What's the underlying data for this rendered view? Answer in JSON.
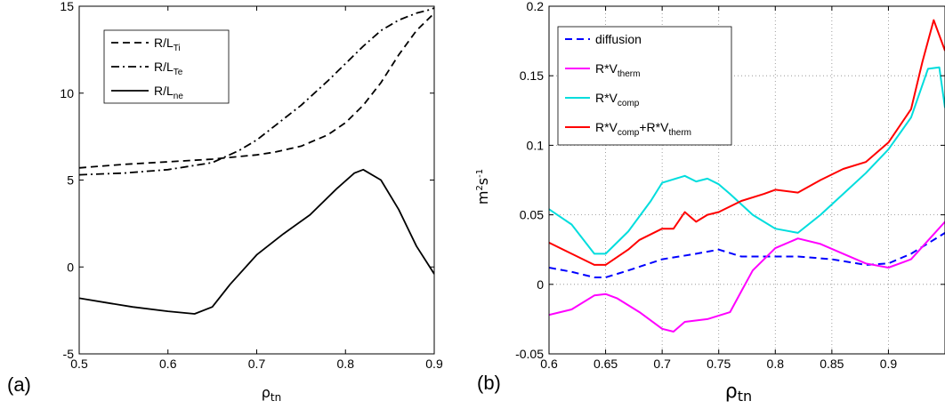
{
  "chart_data": [
    {
      "type": "line",
      "panel_label": "(a)",
      "xlabel": "ρ",
      "xlabel_sub": "tn",
      "ylabel": "",
      "xlim": [
        0.5,
        0.9
      ],
      "ylim": [
        -5,
        15
      ],
      "xticks": [
        "0.5",
        "0.6",
        "0.7",
        "0.8",
        "0.9"
      ],
      "yticks": [
        "-5",
        "0",
        "5",
        "10",
        "15"
      ],
      "grid": false,
      "legend_position": "top-left",
      "series": [
        {
          "name": "R/L",
          "name_sub": "Ti",
          "style": "dashed",
          "color": "#000000",
          "x": [
            0.5,
            0.55,
            0.6,
            0.65,
            0.68,
            0.7,
            0.72,
            0.75,
            0.78,
            0.8,
            0.82,
            0.84,
            0.86,
            0.88,
            0.9
          ],
          "y": [
            5.7,
            5.9,
            6.05,
            6.2,
            6.35,
            6.45,
            6.6,
            6.95,
            7.6,
            8.3,
            9.3,
            10.6,
            12.2,
            13.6,
            14.6
          ]
        },
        {
          "name": "R/L",
          "name_sub": "Te",
          "style": "dashdot",
          "color": "#000000",
          "x": [
            0.5,
            0.55,
            0.6,
            0.65,
            0.68,
            0.7,
            0.72,
            0.75,
            0.78,
            0.8,
            0.82,
            0.84,
            0.86,
            0.88,
            0.895,
            0.9
          ],
          "y": [
            5.3,
            5.4,
            5.6,
            6.0,
            6.7,
            7.3,
            8.1,
            9.3,
            10.7,
            11.7,
            12.7,
            13.6,
            14.2,
            14.6,
            14.8,
            14.9
          ]
        },
        {
          "name": "R/L",
          "name_sub": "ne",
          "style": "solid",
          "color": "#000000",
          "x": [
            0.5,
            0.53,
            0.56,
            0.6,
            0.63,
            0.65,
            0.67,
            0.7,
            0.73,
            0.76,
            0.79,
            0.81,
            0.82,
            0.84,
            0.86,
            0.88,
            0.9
          ],
          "y": [
            -1.8,
            -2.05,
            -2.3,
            -2.55,
            -2.7,
            -2.3,
            -1.0,
            0.7,
            1.9,
            3.0,
            4.5,
            5.4,
            5.6,
            5.0,
            3.3,
            1.2,
            -0.4
          ]
        }
      ]
    },
    {
      "type": "line",
      "panel_label": "(b)",
      "xlabel": "ρ",
      "xlabel_sub": "tn",
      "ylabel": "m",
      "ylabel_sup": "2",
      "ylabel_tail": "s",
      "ylabel_tail_sup": "-1",
      "xlim": [
        0.6,
        0.95
      ],
      "ylim": [
        -0.05,
        0.2
      ],
      "xticks": [
        "0.6",
        "0.65",
        "0.7",
        "0.75",
        "0.8",
        "0.85",
        "0.9"
      ],
      "yticks": [
        "-0.05",
        "0",
        "0.05",
        "0.1",
        "0.15",
        "0.2"
      ],
      "grid": true,
      "legend_position": "top-left",
      "series": [
        {
          "name": "diffusion",
          "style": "dashed",
          "color": "#0000ff",
          "x": [
            0.6,
            0.62,
            0.64,
            0.65,
            0.67,
            0.7,
            0.73,
            0.75,
            0.77,
            0.8,
            0.82,
            0.85,
            0.88,
            0.9,
            0.92,
            0.95
          ],
          "y": [
            0.012,
            0.009,
            0.005,
            0.005,
            0.01,
            0.018,
            0.022,
            0.025,
            0.02,
            0.02,
            0.02,
            0.018,
            0.014,
            0.015,
            0.022,
            0.037
          ]
        },
        {
          "name": "R*V",
          "name_sub": "therm",
          "style": "solid",
          "color": "#ff00ff",
          "x": [
            0.6,
            0.62,
            0.64,
            0.65,
            0.66,
            0.68,
            0.7,
            0.71,
            0.72,
            0.74,
            0.76,
            0.77,
            0.78,
            0.8,
            0.82,
            0.84,
            0.86,
            0.88,
            0.9,
            0.92,
            0.95
          ],
          "y": [
            -0.022,
            -0.018,
            -0.008,
            -0.007,
            -0.01,
            -0.02,
            -0.032,
            -0.034,
            -0.027,
            -0.025,
            -0.02,
            -0.005,
            0.01,
            0.026,
            0.033,
            0.029,
            0.022,
            0.015,
            0.012,
            0.018,
            0.045
          ]
        },
        {
          "name": "R*V",
          "name_sub": "comp",
          "style": "solid",
          "color": "#00dddd",
          "x": [
            0.6,
            0.62,
            0.64,
            0.65,
            0.67,
            0.69,
            0.7,
            0.72,
            0.73,
            0.74,
            0.75,
            0.76,
            0.78,
            0.8,
            0.82,
            0.84,
            0.86,
            0.88,
            0.9,
            0.92,
            0.935,
            0.945,
            0.95
          ],
          "y": [
            0.054,
            0.043,
            0.022,
            0.022,
            0.038,
            0.06,
            0.073,
            0.078,
            0.074,
            0.076,
            0.072,
            0.065,
            0.05,
            0.04,
            0.037,
            0.05,
            0.065,
            0.08,
            0.097,
            0.12,
            0.155,
            0.156,
            0.127
          ]
        },
        {
          "name": "R*V",
          "name_sub": "comp",
          "name_tail": "+R*V",
          "name_tail_sub": "therm",
          "style": "solid",
          "color": "#ff0000",
          "x": [
            0.6,
            0.62,
            0.64,
            0.65,
            0.67,
            0.68,
            0.7,
            0.71,
            0.72,
            0.73,
            0.74,
            0.75,
            0.77,
            0.79,
            0.8,
            0.82,
            0.84,
            0.86,
            0.88,
            0.9,
            0.92,
            0.93,
            0.94,
            0.95
          ],
          "y": [
            0.03,
            0.022,
            0.014,
            0.014,
            0.025,
            0.032,
            0.04,
            0.04,
            0.052,
            0.045,
            0.05,
            0.052,
            0.06,
            0.065,
            0.068,
            0.066,
            0.075,
            0.083,
            0.088,
            0.102,
            0.126,
            0.16,
            0.19,
            0.168
          ]
        }
      ]
    }
  ]
}
